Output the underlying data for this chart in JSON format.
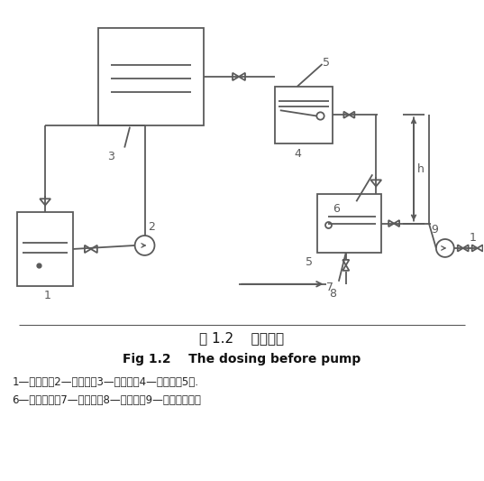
{
  "line_color": "#5a5a5a",
  "title_cn": "图 1.2    泵前加药",
  "title_en": "Fig 1.2    The dosing before pump",
  "caption_line1": "1—溶解池；2—提升泵；3—溶液池；4—恒位箱；5筒.",
  "caption_line2": "6—投药苗嘴；7—水封箱；8—吸水管；9—水泵；水泵；",
  "lw": 1.3
}
